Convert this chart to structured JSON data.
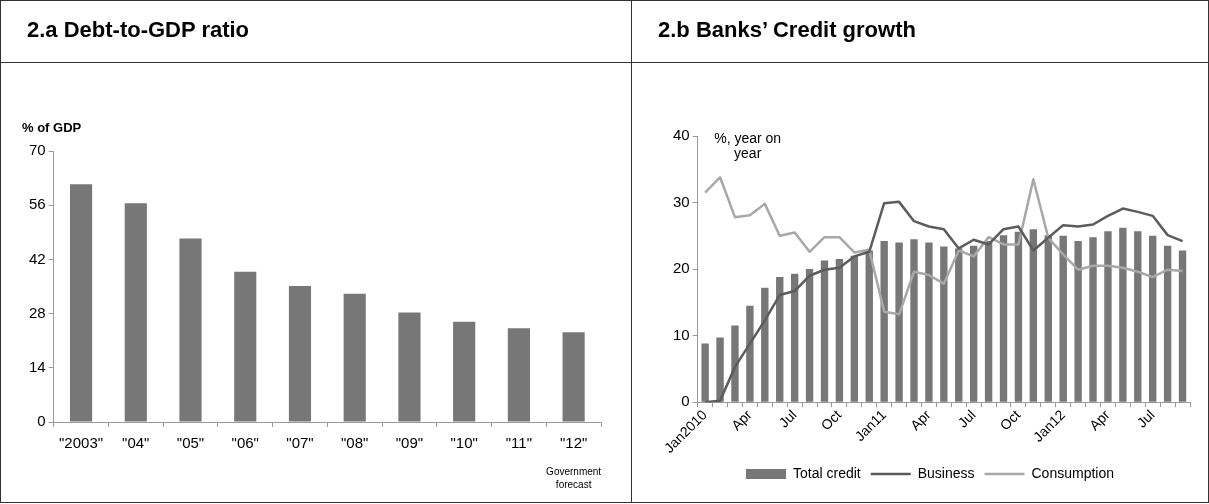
{
  "chart_data": [
    {
      "type": "bar",
      "title": "2.a Debt-to-GDP ratio",
      "ylabel": "% of GDP",
      "categories": [
        "\"2003\"",
        "\"04\"",
        "\"05\"",
        "\"06\"",
        "\"07\"",
        "\"08\"",
        "\"09\"",
        "\"10\"",
        "\"11\"",
        "\"12\""
      ],
      "values": [
        61.4,
        56.5,
        47.4,
        38.8,
        35.1,
        33.1,
        28.3,
        25.9,
        24.2,
        23.2
      ],
      "color": "#777777",
      "ylim": [
        0,
        70
      ],
      "yticks": [
        0,
        14,
        28,
        42,
        56,
        70
      ],
      "grid": false,
      "legend": false,
      "annotations": [
        "Government forecast"
      ]
    },
    {
      "type": "bar",
      "title": "2.b Banks’ Credit growth",
      "ylabel": "%, year on year",
      "categories": [
        "Jan2010",
        null,
        null,
        "Apr",
        null,
        null,
        "Jul",
        null,
        null,
        "Oct",
        null,
        null,
        "Jan11",
        null,
        null,
        "Apr",
        null,
        null,
        "Jul",
        null,
        null,
        "Oct",
        null,
        null,
        "Jan12",
        null,
        null,
        "Apr",
        null,
        null,
        "Jul",
        null,
        null
      ],
      "series": [
        {
          "name": "Total credit",
          "color": "#777777",
          "values": [
            8.8,
            9.7,
            11.5,
            14.5,
            17.2,
            18.8,
            19.3,
            20.0,
            21.3,
            21.5,
            22.0,
            22.8,
            24.2,
            24.0,
            24.5,
            24.0,
            23.4,
            23.1,
            23.5,
            24.2,
            25.1,
            25.6,
            26.0,
            25.1,
            25.0,
            24.2,
            24.8,
            25.7,
            26.2,
            25.7,
            25.0,
            23.5,
            22.8
          ]
        },
        {
          "name": "Business",
          "type": "line",
          "color": "#5c5c5c",
          "values": [
            0.0,
            0.2,
            5.3,
            8.8,
            12.3,
            16.1,
            16.7,
            19.0,
            19.9,
            20.2,
            21.9,
            22.6,
            29.9,
            30.1,
            27.2,
            26.4,
            26.0,
            23.1,
            24.4,
            23.7,
            26.0,
            26.4,
            22.8,
            24.7,
            26.6,
            26.4,
            26.7,
            28.0,
            29.1,
            28.6,
            28.0,
            25.1,
            24.2
          ]
        },
        {
          "name": "Consumption",
          "type": "line",
          "color": "#a8a8a8",
          "values": [
            31.5,
            33.8,
            27.8,
            28.1,
            29.8,
            25.0,
            25.5,
            22.6,
            24.8,
            24.8,
            22.5,
            22.9,
            13.6,
            13.2,
            19.6,
            19.1,
            17.8,
            22.8,
            21.9,
            24.8,
            23.7,
            23.7,
            33.5,
            24.7,
            22.2,
            19.9,
            20.5,
            20.5,
            20.2,
            19.6,
            18.8,
            19.9,
            19.7
          ]
        }
      ],
      "ylim": [
        0,
        40
      ],
      "yticks": [
        0,
        10,
        20,
        30,
        40
      ],
      "grid": false,
      "legend": "bottom",
      "marker": "none"
    }
  ]
}
